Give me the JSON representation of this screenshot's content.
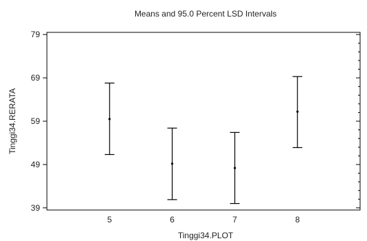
{
  "chart_data": {
    "type": "interval",
    "title": "Means and 95.0 Percent LSD Intervals",
    "xlabel": "Tinggi34.PLOT",
    "ylabel": "Tinggi34.RERATA",
    "categories": [
      "5",
      "6",
      "7",
      "8"
    ],
    "ylim": [
      38.5,
      79.5
    ],
    "xlim": [
      4,
      9
    ],
    "yticks": [
      39,
      49,
      59,
      69,
      79
    ],
    "intervals": [
      {
        "x": "5",
        "mean": 59.5,
        "lower": 51.3,
        "upper": 67.8
      },
      {
        "x": "6",
        "mean": 49.2,
        "lower": 40.9,
        "upper": 57.4
      },
      {
        "x": "7",
        "mean": 48.2,
        "lower": 40.0,
        "upper": 56.4
      },
      {
        "x": "8",
        "mean": 61.2,
        "lower": 52.9,
        "upper": 69.3
      }
    ],
    "grid": false
  }
}
